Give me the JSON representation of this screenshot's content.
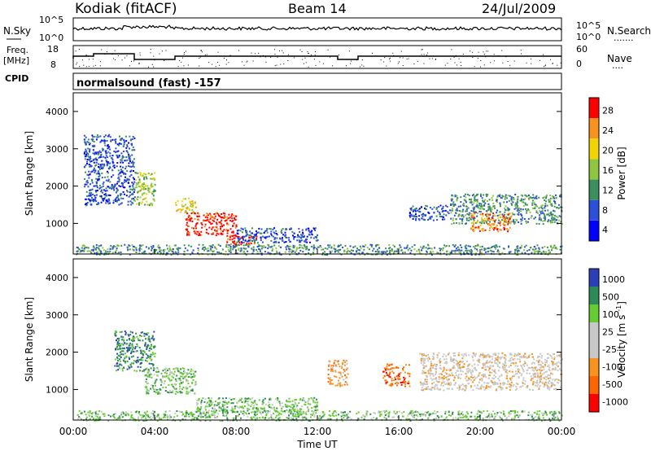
{
  "header": {
    "station": "Kodiak (fitACF)",
    "beam": "Beam 14",
    "date": "24/Jul/2009"
  },
  "noise_panel": {
    "left_label": "N.Sky",
    "left_ticks": [
      "10^5",
      "10^0"
    ],
    "right_label": "N.Search",
    "right_ticks": [
      "10^5",
      "10^0"
    ],
    "right_marker": "......."
  },
  "freq_panel": {
    "left_label_top": "Freq.",
    "left_label_bottom": "[MHz]",
    "left_ticks": [
      "18",
      "8"
    ],
    "right_label": "Nave",
    "right_ticks": [
      "60",
      "0"
    ],
    "right_marker": "...."
  },
  "cpid_panel": {
    "label": "CPID",
    "mode_text": "normalsound (fast) -157"
  },
  "chart_data": [
    {
      "type": "heatmap",
      "name": "power",
      "ylabel": "Slant Range [km]",
      "yticks": [
        "4000",
        "3000",
        "2000",
        "1000"
      ],
      "ylim": [
        180,
        4500
      ],
      "colorbar_label": "Power [dB]",
      "colorbar_ticks": [
        "28",
        "24",
        "20",
        "16",
        "12",
        "8",
        "4"
      ],
      "colorbar_colors": [
        "#0000ff",
        "#2b4fd8",
        "#3a8f5c",
        "#8ec63f",
        "#f2d400",
        "#f7931e",
        "#ff0000"
      ],
      "xlim_hours": [
        0,
        24
      ],
      "regions": [
        {
          "t": [
            0.1,
            24
          ],
          "r": [
            180,
            450
          ],
          "level": 2
        },
        {
          "t": [
            0.5,
            3
          ],
          "r": [
            1500,
            3400
          ],
          "level": 1
        },
        {
          "t": [
            3,
            4
          ],
          "r": [
            1500,
            2400
          ],
          "level": 3
        },
        {
          "t": [
            5,
            6
          ],
          "r": [
            1300,
            1700
          ],
          "level": 4
        },
        {
          "t": [
            5.5,
            8
          ],
          "r": [
            700,
            1300
          ],
          "level": 6
        },
        {
          "t": [
            7.5,
            9
          ],
          "r": [
            450,
            700
          ],
          "level": 6
        },
        {
          "t": [
            8,
            12
          ],
          "r": [
            500,
            900
          ],
          "level": 1
        },
        {
          "t": [
            16.5,
            18.5
          ],
          "r": [
            1100,
            1500
          ],
          "level": 1
        },
        {
          "t": [
            18.5,
            24
          ],
          "r": [
            1000,
            1800
          ],
          "level": 2
        },
        {
          "t": [
            19.5,
            21.5
          ],
          "r": [
            800,
            1300
          ],
          "level": 5
        }
      ]
    },
    {
      "type": "heatmap",
      "name": "velocity",
      "ylabel": "Slant Range [km]",
      "yticks": [
        "4000",
        "3000",
        "2000",
        "1000"
      ],
      "ylim": [
        180,
        4500
      ],
      "colorbar_label": "Velocity [m s^-1]",
      "colorbar_ticks": [
        "1000",
        "500",
        "100",
        "25",
        "-25",
        "-100",
        "-500",
        "-1000"
      ],
      "colorbar_colors": [
        "#ff0000",
        "#ff6600",
        "#f7931e",
        "#c8c8c8",
        "#c8c8c8",
        "#66cc33",
        "#2e8b57",
        "#2b3fb8"
      ],
      "xlim_hours": [
        0,
        24
      ],
      "regions": [
        {
          "t": [
            0.1,
            24
          ],
          "r": [
            180,
            450
          ],
          "level": 5
        },
        {
          "t": [
            2,
            4
          ],
          "r": [
            1500,
            2600
          ],
          "level": 6
        },
        {
          "t": [
            3.5,
            6
          ],
          "r": [
            900,
            1600
          ],
          "level": 5
        },
        {
          "t": [
            6,
            12
          ],
          "r": [
            400,
            800
          ],
          "level": 5
        },
        {
          "t": [
            12.5,
            13.5
          ],
          "r": [
            1100,
            1800
          ],
          "level": 2
        },
        {
          "t": [
            15.2,
            16.5
          ],
          "r": [
            1100,
            1700
          ],
          "level": 1
        },
        {
          "t": [
            17,
            24
          ],
          "r": [
            1000,
            2000
          ],
          "level": 3
        }
      ]
    }
  ],
  "x_axis": {
    "ticks": [
      "00:00",
      "04:00",
      "08:00",
      "12:00",
      "16:00",
      "20:00",
      "00:00"
    ],
    "label": "Time UT"
  },
  "colors": {
    "axis": "#000000",
    "trace": "#000000"
  }
}
